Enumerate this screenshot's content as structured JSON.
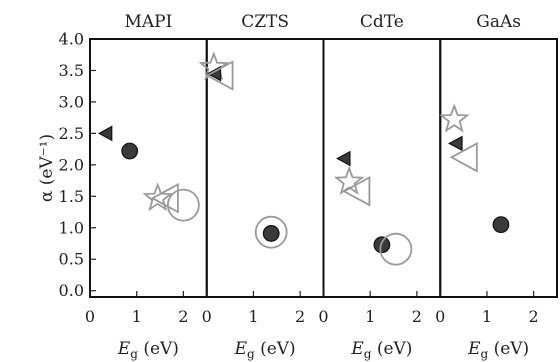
{
  "chart_data": {
    "type": "scatter",
    "y_axis": {
      "label": "α (eV⁻¹)",
      "range": [
        -0.1,
        4.0
      ],
      "ticks": [
        "0.0",
        "0.5",
        "1.0",
        "1.5",
        "2.0",
        "2.5",
        "3.0",
        "3.5",
        "4.0"
      ],
      "tick_values": [
        0.0,
        0.5,
        1.0,
        1.5,
        2.0,
        2.5,
        3.0,
        3.5,
        4.0
      ]
    },
    "x_axis": {
      "label": "E_g (eV)",
      "range": [
        0,
        2.5
      ],
      "ticks": [
        "0",
        "1",
        "2"
      ],
      "tick_values": [
        0,
        1,
        2
      ]
    },
    "grid": false,
    "marker_styles": {
      "filled": {
        "fill": "#3a3a3a",
        "stroke": "#111111"
      },
      "open": {
        "fill": "none",
        "stroke": "#9a9a9a"
      }
    },
    "panels": [
      {
        "title": "MAPI",
        "points": [
          {
            "marker": "triangle-left",
            "style": "filled",
            "x": 0.35,
            "y": 2.5
          },
          {
            "marker": "circle",
            "style": "filled",
            "x": 0.85,
            "y": 2.22
          },
          {
            "marker": "star",
            "style": "open",
            "x": 1.45,
            "y": 1.47
          },
          {
            "marker": "triangle-left",
            "style": "open",
            "x": 1.65,
            "y": 1.47
          },
          {
            "marker": "circle",
            "style": "open",
            "x": 2.0,
            "y": 1.36
          }
        ]
      },
      {
        "title": "CZTS",
        "points": [
          {
            "marker": "star",
            "style": "open",
            "x": 0.15,
            "y": 3.55
          },
          {
            "marker": "triangle-left",
            "style": "filled",
            "x": 0.18,
            "y": 3.45
          },
          {
            "marker": "triangle-left",
            "style": "open",
            "x": 0.32,
            "y": 3.42
          },
          {
            "marker": "circle",
            "style": "open",
            "x": 1.38,
            "y": 0.93
          },
          {
            "marker": "circle",
            "style": "filled",
            "x": 1.38,
            "y": 0.91
          }
        ]
      },
      {
        "title": "CdTe",
        "points": [
          {
            "marker": "triangle-left",
            "style": "filled",
            "x": 0.45,
            "y": 2.1
          },
          {
            "marker": "star",
            "style": "open",
            "x": 0.55,
            "y": 1.73
          },
          {
            "marker": "triangle-left",
            "style": "open",
            "x": 0.75,
            "y": 1.58
          },
          {
            "marker": "circle",
            "style": "filled",
            "x": 1.25,
            "y": 0.73
          },
          {
            "marker": "circle",
            "style": "open",
            "x": 1.55,
            "y": 0.66
          }
        ]
      },
      {
        "title": "GaAs",
        "points": [
          {
            "marker": "star",
            "style": "open",
            "x": 0.3,
            "y": 2.72
          },
          {
            "marker": "triangle-left",
            "style": "filled",
            "x": 0.35,
            "y": 2.34
          },
          {
            "marker": "triangle-left",
            "style": "open",
            "x": 0.55,
            "y": 2.12
          },
          {
            "marker": "circle",
            "style": "filled",
            "x": 1.3,
            "y": 1.05
          }
        ]
      }
    ]
  }
}
